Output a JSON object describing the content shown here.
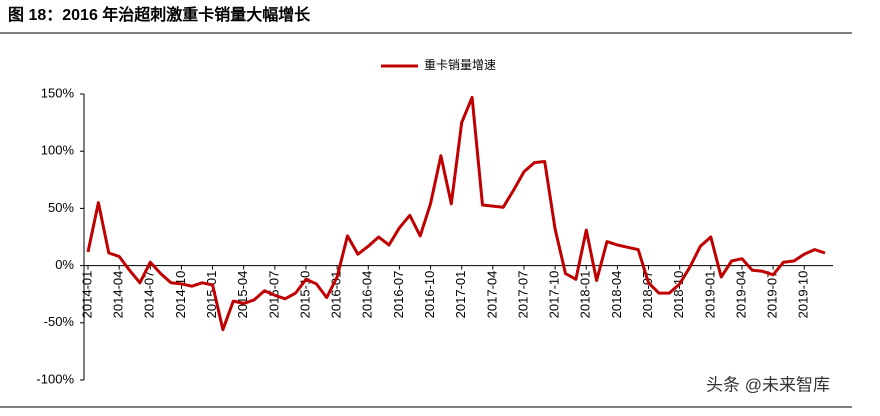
{
  "chart_data": {
    "type": "line",
    "title": "图 18：2016 年治超刺激重卡销量大幅增长",
    "watermark": "头条 @未来智库",
    "categories": [
      "2014-01",
      null,
      null,
      "2014-04",
      null,
      null,
      "2014-07",
      null,
      null,
      "2014-10",
      null,
      null,
      "2015-01",
      null,
      null,
      "2015-04",
      null,
      null,
      "2015-07",
      null,
      null,
      "2015-10",
      null,
      null,
      "2016-01",
      null,
      null,
      "2016-04",
      null,
      null,
      "2016-07",
      null,
      null,
      "2016-10",
      null,
      null,
      "2017-01",
      null,
      null,
      "2017-04",
      null,
      null,
      "2017-07",
      null,
      null,
      "2017-10",
      null,
      null,
      "2018-01",
      null,
      null,
      "2018-04",
      null,
      null,
      "2018-07",
      null,
      null,
      "2018-10",
      null,
      null,
      "2019-01",
      null,
      null,
      "2019-04",
      null,
      null,
      "2019-07",
      null,
      null,
      "2019-10",
      null,
      null
    ],
    "series": [
      {
        "name": "重卡销量增速",
        "color": "#c00000",
        "values": [
          12,
          55,
          11,
          8,
          -4,
          -15,
          3,
          -7,
          -15,
          -16,
          -18,
          -15,
          -17,
          -56,
          -31,
          -33,
          -30,
          -22,
          -26,
          -29,
          -24,
          -12,
          -16,
          -28,
          -10,
          26,
          10,
          17,
          25,
          18,
          33,
          44,
          26,
          54,
          96,
          54,
          125,
          147,
          53,
          52,
          51,
          66,
          82,
          90,
          91,
          32,
          -7,
          -12,
          31,
          -13,
          21,
          18,
          16,
          14,
          -15,
          -24,
          -24,
          -16,
          -1,
          17,
          25,
          -10,
          4,
          6,
          -4,
          -5,
          -8,
          3,
          4,
          10,
          14,
          11
        ]
      }
    ],
    "ylim": [
      -100,
      150
    ],
    "yticks": [
      {
        "value": -100,
        "label": "-100%"
      },
      {
        "value": -50,
        "label": "-50%"
      },
      {
        "value": 0,
        "label": "0%"
      },
      {
        "value": 50,
        "label": "50%"
      },
      {
        "value": 100,
        "label": "100%"
      },
      {
        "value": 150,
        "label": "150%"
      }
    ],
    "legend": "top"
  }
}
